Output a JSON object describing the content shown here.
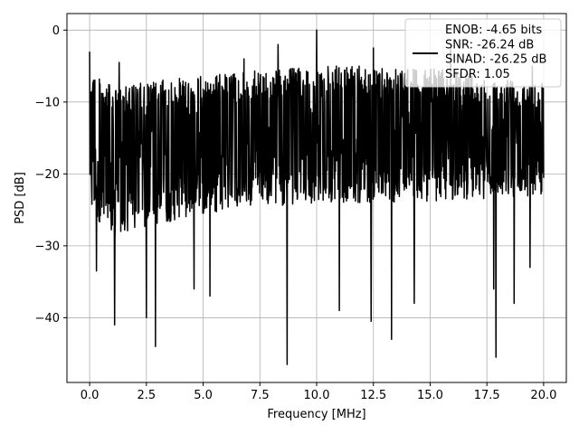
{
  "chart_data": {
    "type": "line",
    "xlabel": "Frequency [MHz]",
    "ylabel": "PSD [dB]",
    "xlim": [
      -1.0,
      21.0
    ],
    "ylim": [
      -49.0,
      2.3
    ],
    "xticks": [
      0.0,
      2.5,
      5.0,
      7.5,
      10.0,
      12.5,
      15.0,
      17.5,
      20.0
    ],
    "xtick_labels": [
      "0.0",
      "2.5",
      "5.0",
      "7.5",
      "10.0",
      "12.5",
      "15.0",
      "17.5",
      "20.0"
    ],
    "yticks": [
      0,
      -10,
      -20,
      -30,
      -40
    ],
    "ytick_labels": [
      "0",
      "−10",
      "−20",
      "−30",
      "−40"
    ],
    "grid": true,
    "legend_position": "top-right",
    "legend_lines": [
      "ENOB: -4.65 bits",
      "SNR: -26.24 dB",
      "SINAD: -26.25 dB",
      "SFDR: 1.05"
    ],
    "series": [
      {
        "color": "#000000",
        "description": "noise-like PSD trace, dense fluctuations between about -30 and -5 dB",
        "x_range": [
          0.0,
          20.0
        ],
        "band_upper": [
          [
            0.0,
            -5
          ],
          [
            1.0,
            -8
          ],
          [
            3.0,
            -7
          ],
          [
            6.0,
            -6
          ],
          [
            10.0,
            -5
          ],
          [
            14.0,
            -5
          ],
          [
            20.0,
            -7
          ]
        ],
        "band_lower": [
          [
            0.0,
            -25
          ],
          [
            1.0,
            -29
          ],
          [
            3.0,
            -27
          ],
          [
            6.0,
            -25
          ],
          [
            10.0,
            -24
          ],
          [
            14.0,
            -24
          ],
          [
            20.0,
            -23
          ]
        ],
        "peaks": [
          [
            0.0,
            -3
          ],
          [
            1.3,
            -4.5
          ],
          [
            2.5,
            -7.5
          ],
          [
            6.8,
            -4
          ],
          [
            8.3,
            -2
          ],
          [
            10.0,
            0
          ],
          [
            12.5,
            -2.5
          ],
          [
            15.9,
            -2.5
          ],
          [
            19.5,
            -5
          ]
        ],
        "dips": [
          [
            0.3,
            -33.5
          ],
          [
            1.1,
            -41
          ],
          [
            2.5,
            -40
          ],
          [
            2.9,
            -44
          ],
          [
            4.6,
            -36
          ],
          [
            5.3,
            -37
          ],
          [
            8.7,
            -46.5
          ],
          [
            11.0,
            -39
          ],
          [
            12.4,
            -40.5
          ],
          [
            13.3,
            -43
          ],
          [
            14.3,
            -38
          ],
          [
            17.8,
            -36
          ],
          [
            17.9,
            -45.5
          ],
          [
            18.7,
            -38
          ],
          [
            19.4,
            -33
          ]
        ]
      }
    ]
  }
}
